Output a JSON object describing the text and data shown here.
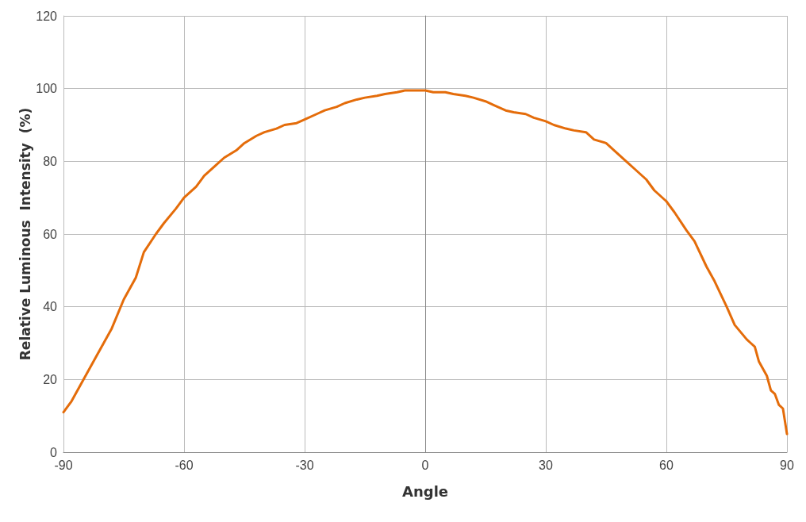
{
  "chart_data": {
    "type": "line",
    "xlabel": "Angle",
    "ylabel": "Relative Luminous  Intensity  (%)",
    "x": [
      -90,
      -88,
      -85,
      -82,
      -80,
      -78,
      -75,
      -72,
      -70,
      -67,
      -65,
      -62,
      -60,
      -57,
      -55,
      -52,
      -50,
      -47,
      -45,
      -42,
      -40,
      -37,
      -35,
      -32,
      -30,
      -27,
      -25,
      -22,
      -20,
      -17,
      -15,
      -12,
      -10,
      -7,
      -5,
      -2,
      0,
      2,
      5,
      7,
      10,
      12,
      15,
      17,
      20,
      22,
      25,
      27,
      30,
      32,
      35,
      37,
      40,
      42,
      45,
      47,
      50,
      52,
      55,
      57,
      60,
      62,
      65,
      67,
      70,
      72,
      75,
      77,
      80,
      81,
      82,
      83,
      85,
      86,
      87,
      88,
      89,
      90
    ],
    "series": [
      {
        "color": "#e46c0a",
        "values": [
          11,
          14,
          20,
          26,
          30,
          34,
          42,
          48,
          55,
          60,
          63,
          67,
          70,
          73,
          76,
          79,
          81,
          83,
          85,
          87,
          88,
          89,
          90,
          90.5,
          91.5,
          93,
          94,
          95,
          96,
          97,
          97.5,
          98,
          98.5,
          99,
          99.5,
          99.5,
          99.5,
          99,
          99,
          98.5,
          98,
          97.5,
          96.5,
          95.5,
          94,
          93.5,
          93,
          92,
          91,
          90,
          89,
          88.5,
          88,
          86,
          85,
          83,
          80,
          78,
          75,
          72,
          69,
          66,
          61,
          58,
          51,
          47,
          40,
          35,
          31,
          30,
          29,
          25,
          21,
          17,
          16,
          13,
          12,
          5
        ]
      }
    ],
    "xlim": [
      -90,
      90
    ],
    "xticks": [
      -90,
      -60,
      -30,
      0,
      30,
      60,
      90
    ],
    "ylim": [
      0,
      120
    ],
    "yticks": [
      0,
      20,
      40,
      60,
      80,
      100,
      120
    ],
    "grid": true,
    "marker": "none",
    "line_style": "solid"
  }
}
